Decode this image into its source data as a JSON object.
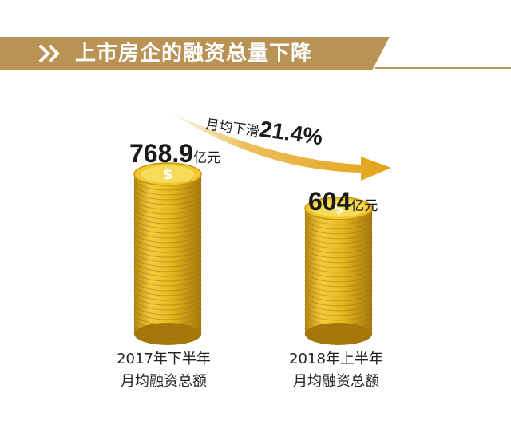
{
  "header": {
    "title": "上市房企的融资总量下降"
  },
  "chart_data": {
    "type": "bar",
    "categories": [
      "2017年下半年\n月均融资总额",
      "2018年上半年\n月均融资总额"
    ],
    "values": [
      768.9,
      604
    ],
    "unit": "亿元",
    "value_labels": [
      "768.9",
      "604"
    ],
    "category_lines": [
      [
        "2017年下半年",
        "月均融资总额"
      ],
      [
        "2018年上半年",
        "月均融资总额"
      ]
    ],
    "annotation": {
      "prefix": "月均下滑",
      "value": "21.4%"
    },
    "colors": {
      "coin": "#e6b81f",
      "coin_dark": "#b5860f",
      "coin_light": "#f7dc5a",
      "arrow": "#e4a316",
      "banner": "#b99356"
    }
  }
}
